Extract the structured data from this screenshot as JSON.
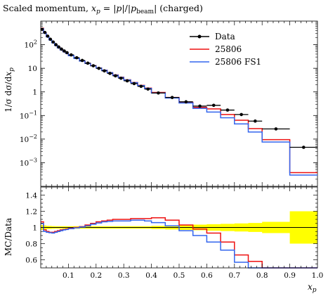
{
  "chart_data": [
    {
      "type": "line",
      "panel": "main",
      "title": "Scaled momentum, x_p = |p|/|p_beam| (charged)",
      "title_parts": {
        "prefix": "Scaled momentum, ",
        "x": "x",
        "x_sub": "p",
        "eq": " = |",
        "p1": "p",
        "mid": "|/|",
        "p2": "p",
        "p2_sub": "beam",
        "suffix": "| (charged)"
      },
      "ylabel": "1/σ dσ/dx_p",
      "ylabel_parts": {
        "main": "1/σ dσ/d",
        "x": "x",
        "sub": "p"
      },
      "xlabel": "x_p",
      "xlabel_parts": {
        "x": "x",
        "sub": "p"
      },
      "xlim": [
        0.0,
        1.0
      ],
      "ylim": [
        0.0001,
        1000
      ],
      "yscale": "log",
      "yticks": [
        {
          "value": 0.001,
          "base": "10",
          "exp": "−3"
        },
        {
          "value": 0.01,
          "base": "10",
          "exp": "−2"
        },
        {
          "value": 0.1,
          "base": "10",
          "exp": "−1"
        },
        {
          "value": 1,
          "base": "1",
          "exp": ""
        },
        {
          "value": 10,
          "base": "10",
          "exp": ""
        },
        {
          "value": 100,
          "base": "10",
          "exp": "2"
        }
      ],
      "legend": {
        "placement": "top-right",
        "entries": [
          {
            "label": "Data",
            "color": "#000000",
            "marker": true
          },
          {
            "label": "25806",
            "color": "#ee1111",
            "marker": false
          },
          {
            "label": "25806 FS1",
            "color": "#3366ee",
            "marker": false
          }
        ]
      },
      "bin_edges": [
        0.0,
        0.01,
        0.02,
        0.03,
        0.04,
        0.05,
        0.06,
        0.07,
        0.08,
        0.09,
        0.1,
        0.12,
        0.14,
        0.16,
        0.18,
        0.2,
        0.22,
        0.24,
        0.26,
        0.28,
        0.3,
        0.325,
        0.35,
        0.375,
        0.4,
        0.45,
        0.5,
        0.55,
        0.6,
        0.65,
        0.7,
        0.75,
        0.8,
        0.9,
        1.0
      ],
      "series": [
        {
          "name": "Data",
          "color": "#000000",
          "style": "points",
          "x": [
            0.005,
            0.015,
            0.025,
            0.035,
            0.045,
            0.055,
            0.065,
            0.075,
            0.085,
            0.095,
            0.11,
            0.13,
            0.15,
            0.17,
            0.19,
            0.21,
            0.23,
            0.25,
            0.27,
            0.29,
            0.3125,
            0.3375,
            0.3625,
            0.3875,
            0.425,
            0.475,
            0.525,
            0.575,
            0.625,
            0.675,
            0.725,
            0.775,
            0.85,
            0.95
          ],
          "values": [
            450,
            330,
            230,
            170,
            130,
            100,
            80,
            65,
            54,
            46,
            37,
            28,
            21.5,
            16.5,
            12.8,
            10.0,
            7.8,
            6.1,
            4.8,
            3.8,
            2.95,
            2.25,
            1.72,
            1.32,
            0.9,
            0.58,
            0.38,
            0.25,
            0.27,
            0.17,
            0.11,
            0.058,
            0.027,
            0.0045
          ]
        },
        {
          "name": "25806",
          "color": "#ee1111",
          "style": "histogram",
          "values": [
            500,
            320,
            220,
            160,
            122,
            95,
            75,
            61,
            51,
            43,
            34.5,
            26,
            20.5,
            16.2,
            12.9,
            10.4,
            8.3,
            6.6,
            5.25,
            4.2,
            3.25,
            2.5,
            1.9,
            1.45,
            0.95,
            0.58,
            0.36,
            0.22,
            0.19,
            0.11,
            0.063,
            0.028,
            0.0095,
            0.00038
          ]
        },
        {
          "name": "25806 FS1",
          "color": "#3366ee",
          "style": "histogram",
          "values": [
            480,
            310,
            215,
            158,
            120,
            93,
            73,
            60,
            50,
            42.5,
            34,
            26,
            20.2,
            16,
            12.8,
            10.3,
            8.2,
            6.5,
            5.15,
            4.1,
            3.2,
            2.45,
            1.85,
            1.4,
            0.9,
            0.55,
            0.34,
            0.2,
            0.14,
            0.08,
            0.044,
            0.02,
            0.0075,
            0.0003
          ]
        }
      ]
    },
    {
      "type": "line",
      "panel": "ratio",
      "ylabel": "MC/Data",
      "xlabel": "x_p",
      "xlim": [
        0.0,
        1.0
      ],
      "ylim": [
        0.5,
        1.5
      ],
      "yticks": [
        "0.6",
        "0.8",
        "1",
        "1.2",
        "1.4"
      ],
      "xticks": [
        "0.1",
        "0.2",
        "0.3",
        "0.4",
        "0.5",
        "0.6",
        "0.7",
        "0.8",
        "0.9",
        "1.0"
      ],
      "uncertainty_band": {
        "color": "#ffff00",
        "half_width": [
          0.03,
          0.025,
          0.02,
          0.018,
          0.016,
          0.015,
          0.015,
          0.015,
          0.015,
          0.015,
          0.015,
          0.015,
          0.015,
          0.015,
          0.015,
          0.015,
          0.015,
          0.015,
          0.015,
          0.015,
          0.015,
          0.015,
          0.015,
          0.015,
          0.02,
          0.025,
          0.03,
          0.035,
          0.04,
          0.045,
          0.05,
          0.055,
          0.07,
          0.2
        ]
      },
      "series": [
        {
          "name": "25806",
          "color": "#ee1111",
          "values": [
            1.07,
            0.97,
            0.95,
            0.94,
            0.94,
            0.95,
            0.96,
            0.97,
            0.975,
            0.98,
            0.99,
            1.0,
            1.01,
            1.03,
            1.05,
            1.07,
            1.08,
            1.09,
            1.1,
            1.1,
            1.1,
            1.11,
            1.11,
            1.11,
            1.12,
            1.09,
            1.03,
            0.98,
            0.93,
            0.82,
            0.66,
            0.58,
            0.5,
            0.5
          ]
        },
        {
          "name": "25806 FS1",
          "color": "#3366ee",
          "values": [
            1.05,
            0.95,
            0.94,
            0.935,
            0.93,
            0.94,
            0.95,
            0.96,
            0.97,
            0.975,
            0.985,
            0.995,
            1.005,
            1.02,
            1.04,
            1.055,
            1.07,
            1.075,
            1.08,
            1.08,
            1.08,
            1.09,
            1.09,
            1.08,
            1.06,
            1.02,
            0.96,
            0.9,
            0.82,
            0.72,
            0.57,
            0.5,
            0.5,
            0.5
          ]
        }
      ]
    }
  ]
}
